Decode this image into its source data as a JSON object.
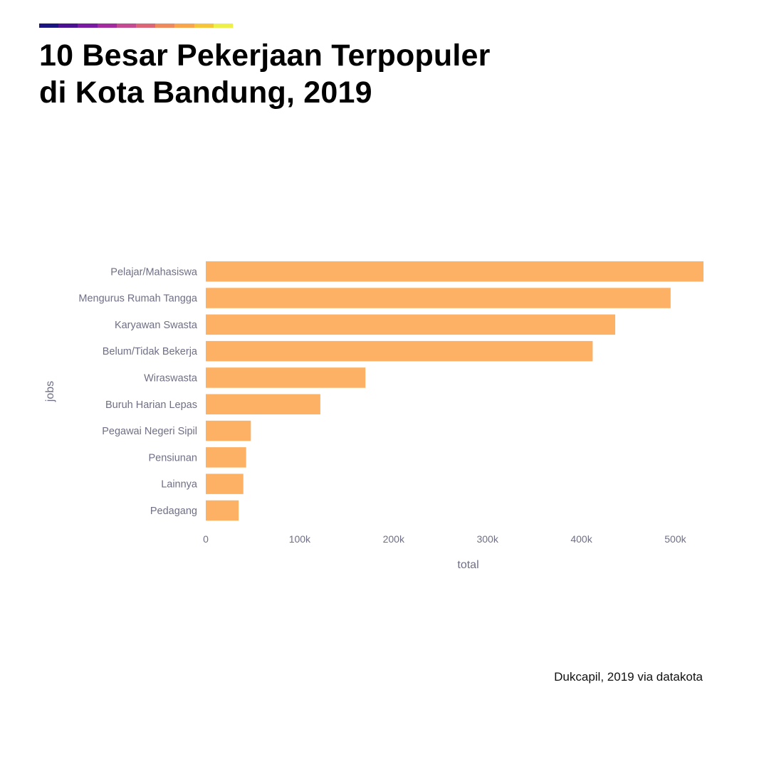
{
  "palette": [
    "#1b1582",
    "#4a1292",
    "#7a1aa3",
    "#a32b9f",
    "#c44b92",
    "#dc6676",
    "#ef8a5c",
    "#f8a54b",
    "#f6c63a",
    "#eef04a"
  ],
  "title": {
    "line1": "10 Besar Pekerjaan Terpopuler",
    "line2": "di Kota Bandung, 2019"
  },
  "source": "Dukcapil, 2019 via datakota",
  "chart_data": {
    "type": "bar",
    "orientation": "horizontal",
    "xlabel": "total",
    "ylabel": "jobs",
    "xlim": [
      0,
      530000
    ],
    "xticks": [
      0,
      100000,
      200000,
      300000,
      400000,
      500000
    ],
    "xtick_labels": [
      "0",
      "100k",
      "200k",
      "300k",
      "400k",
      "500k"
    ],
    "bar_color": "#fcb165",
    "grid": false,
    "categories": [
      "Pelajar/Mahasiswa",
      "Mengurus Rumah Tangga",
      "Karyawan Swasta",
      "Belum/Tidak Bekerja",
      "Wiraswasta",
      "Buruh Harian Lepas",
      "Pegawai Negeri Sipil",
      "Pensiunan",
      "Lainnya",
      "Pedagang"
    ],
    "values": [
      530000,
      495000,
      436000,
      412000,
      170000,
      122000,
      48000,
      43000,
      40000,
      35000
    ]
  }
}
